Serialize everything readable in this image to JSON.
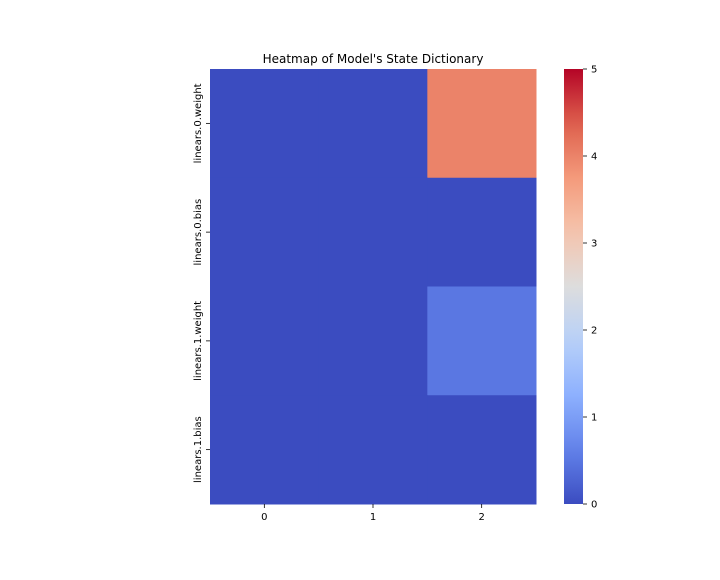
{
  "chart_data": {
    "type": "heatmap",
    "title": "Heatmap of Model's State Dictionary",
    "xlabel": "",
    "ylabel": "",
    "x_categories": [
      "0",
      "1",
      "2"
    ],
    "y_categories": [
      "linears.0.weight",
      "linears.0.bias",
      "linears.1.weight",
      "linears.1.bias"
    ],
    "values": [
      [
        0,
        0,
        4
      ],
      [
        0,
        0,
        0
      ],
      [
        0,
        0,
        0.5
      ],
      [
        0,
        0,
        0
      ]
    ],
    "colorbar": {
      "min": 0,
      "max": 5,
      "ticks": [
        "0",
        "1",
        "2",
        "3",
        "4",
        "5"
      ],
      "colormap": "coolwarm"
    },
    "grid": false
  }
}
